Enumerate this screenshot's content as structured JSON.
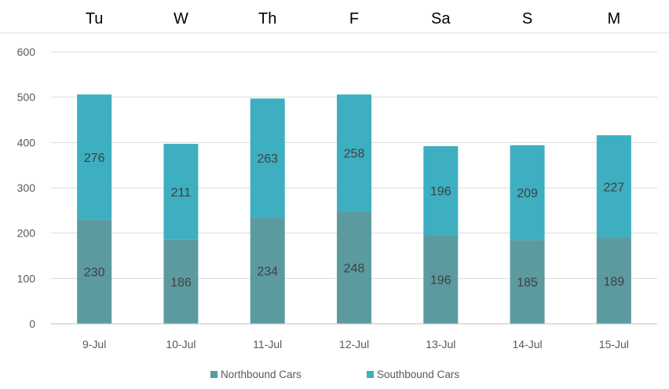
{
  "chart_data": {
    "type": "bar",
    "stacked": true,
    "top_labels": [
      "Tu",
      "W",
      "Th",
      "F",
      "Sa",
      "S",
      "M"
    ],
    "categories": [
      "9-Jul",
      "10-Jul",
      "11-Jul",
      "12-Jul",
      "13-Jul",
      "14-Jul",
      "15-Jul"
    ],
    "series": [
      {
        "name": "Northbound Cars",
        "values": [
          230,
          186,
          234,
          248,
          196,
          185,
          189
        ],
        "color": "#5B9BA0"
      },
      {
        "name": "Southbound Cars",
        "values": [
          276,
          211,
          263,
          258,
          196,
          209,
          227
        ],
        "color": "#3DAFC0"
      }
    ],
    "yticks": [
      "0",
      "100",
      "200",
      "300",
      "400",
      "500",
      "600"
    ],
    "ylim": [
      0,
      600
    ],
    "grid": true,
    "legend": "bottom",
    "title": "",
    "xlabel": "",
    "ylabel": ""
  }
}
